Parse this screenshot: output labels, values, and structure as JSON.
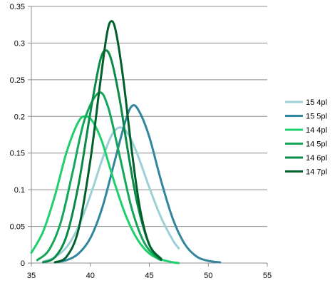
{
  "chart_data": {
    "type": "line",
    "title": "",
    "xlabel": "",
    "ylabel": "",
    "xlim": [
      35,
      55
    ],
    "ylim": [
      0,
      0.35
    ],
    "x_ticks": [
      35,
      40,
      45,
      50,
      55
    ],
    "y_ticks": [
      0,
      0.05,
      0.1,
      0.15,
      0.2,
      0.25,
      0.3,
      0.35
    ],
    "x_tick_labels": [
      "35",
      "40",
      "45",
      "50",
      "55"
    ],
    "y_tick_labels": [
      "0",
      "0.05",
      "0.1",
      "0.15",
      "0.2",
      "0.25",
      "0.3",
      "0.35"
    ],
    "grid": "horizontal",
    "legend_position": "right",
    "series": [
      {
        "name": "15 4pl",
        "color": "#9ccfd8",
        "peak_x": 42.5,
        "peak_y": 0.185,
        "x_range": [
          36.0,
          47.5
        ],
        "points": [
          [
            36.0,
            0.002
          ],
          [
            37.0,
            0.008
          ],
          [
            38.0,
            0.022
          ],
          [
            39.0,
            0.05
          ],
          [
            40.0,
            0.092
          ],
          [
            41.0,
            0.141
          ],
          [
            41.8,
            0.174
          ],
          [
            42.5,
            0.185
          ],
          [
            43.2,
            0.176
          ],
          [
            44.0,
            0.148
          ],
          [
            45.0,
            0.103
          ],
          [
            46.0,
            0.062
          ],
          [
            47.0,
            0.031
          ],
          [
            47.5,
            0.02
          ]
        ]
      },
      {
        "name": "15 5pl",
        "color": "#31859c",
        "peak_x": 43.6,
        "peak_y": 0.215,
        "x_range": [
          37.0,
          51.0
        ],
        "points": [
          [
            37.0,
            0.001
          ],
          [
            38.0,
            0.004
          ],
          [
            39.0,
            0.013
          ],
          [
            40.0,
            0.034
          ],
          [
            41.0,
            0.075
          ],
          [
            42.0,
            0.135
          ],
          [
            43.0,
            0.195
          ],
          [
            43.6,
            0.215
          ],
          [
            44.2,
            0.205
          ],
          [
            45.0,
            0.172
          ],
          [
            46.0,
            0.112
          ],
          [
            47.0,
            0.06
          ],
          [
            48.0,
            0.026
          ],
          [
            49.0,
            0.009
          ],
          [
            50.0,
            0.003
          ],
          [
            51.0,
            0.001
          ]
        ]
      },
      {
        "name": "14 4pl",
        "color": "#1ecf6b",
        "peak_x": 39.6,
        "peak_y": 0.2,
        "x_range": [
          35.0,
          47.5
        ],
        "points": [
          [
            35.0,
            0.014
          ],
          [
            36.0,
            0.043
          ],
          [
            37.0,
            0.092
          ],
          [
            38.0,
            0.152
          ],
          [
            39.0,
            0.193
          ],
          [
            39.6,
            0.2
          ],
          [
            40.2,
            0.193
          ],
          [
            41.0,
            0.165
          ],
          [
            42.0,
            0.112
          ],
          [
            43.0,
            0.065
          ],
          [
            44.0,
            0.032
          ],
          [
            45.0,
            0.013
          ],
          [
            46.0,
            0.005
          ],
          [
            47.0,
            0.001
          ],
          [
            47.5,
            0.0
          ]
        ]
      },
      {
        "name": "14 5pl",
        "color": "#14a659",
        "peak_x": 40.7,
        "peak_y": 0.232,
        "x_range": [
          35.5,
          46.0
        ],
        "points": [
          [
            35.5,
            0.004
          ],
          [
            36.5,
            0.018
          ],
          [
            37.5,
            0.056
          ],
          [
            38.5,
            0.124
          ],
          [
            39.5,
            0.195
          ],
          [
            40.7,
            0.232
          ],
          [
            41.5,
            0.213
          ],
          [
            42.5,
            0.145
          ],
          [
            43.5,
            0.075
          ],
          [
            44.5,
            0.03
          ],
          [
            45.5,
            0.009
          ],
          [
            46.0,
            0.004
          ]
        ]
      },
      {
        "name": "14 6pl",
        "color": "#0a8a47",
        "peak_x": 41.3,
        "peak_y": 0.29,
        "x_range": [
          36.0,
          46.0
        ],
        "points": [
          [
            36.0,
            0.001
          ],
          [
            37.0,
            0.008
          ],
          [
            38.0,
            0.038
          ],
          [
            39.0,
            0.107
          ],
          [
            40.0,
            0.205
          ],
          [
            40.8,
            0.274
          ],
          [
            41.3,
            0.29
          ],
          [
            41.8,
            0.276
          ],
          [
            42.5,
            0.222
          ],
          [
            43.2,
            0.151
          ],
          [
            44.0,
            0.08
          ],
          [
            45.0,
            0.025
          ],
          [
            46.0,
            0.006
          ]
        ]
      },
      {
        "name": "14 7pl",
        "color": "#005f2b",
        "peak_x": 41.8,
        "peak_y": 0.33,
        "x_range": [
          37.0,
          46.0
        ],
        "points": [
          [
            37.0,
            0.001
          ],
          [
            38.0,
            0.009
          ],
          [
            39.0,
            0.046
          ],
          [
            40.0,
            0.14
          ],
          [
            40.8,
            0.241
          ],
          [
            41.4,
            0.312
          ],
          [
            41.8,
            0.33
          ],
          [
            42.2,
            0.313
          ],
          [
            42.8,
            0.25
          ],
          [
            43.5,
            0.155
          ],
          [
            44.2,
            0.075
          ],
          [
            45.0,
            0.025
          ],
          [
            46.0,
            0.005
          ]
        ]
      }
    ]
  }
}
